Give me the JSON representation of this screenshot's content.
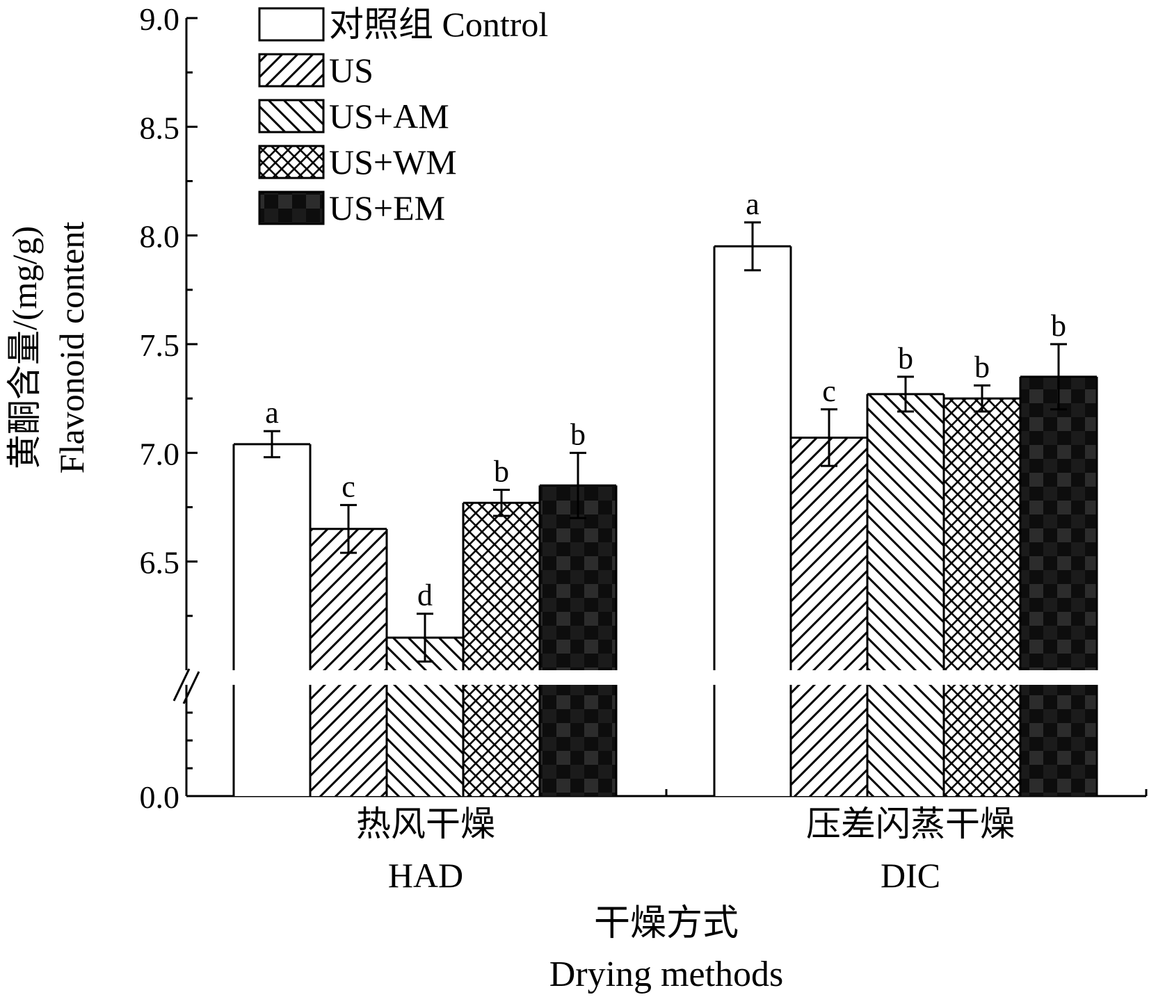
{
  "chart_data": {
    "type": "bar",
    "title": "",
    "xlabel": [
      "干燥方式",
      "Drying methods"
    ],
    "ylabel": [
      "黄酮含量/(mg/g)",
      "Flavonoid content"
    ],
    "axis_break": true,
    "ylim_lower_segment": [
      0,
      6.0
    ],
    "ylim_upper_segment": [
      6.0,
      9.0
    ],
    "yticks": [
      {
        "value": 0.0,
        "label": "0.0"
      },
      {
        "value": 6.5,
        "label": "6.5"
      },
      {
        "value": 7.0,
        "label": "7.0"
      },
      {
        "value": 7.5,
        "label": "7.5"
      },
      {
        "value": 8.0,
        "label": "8.0"
      },
      {
        "value": 8.5,
        "label": "8.5"
      },
      {
        "value": 9.0,
        "label": "9.0"
      }
    ],
    "categories": [
      {
        "zh": "热风干燥",
        "en": "HAD"
      },
      {
        "zh": "压差闪蒸干燥",
        "en": "DIC"
      }
    ],
    "legend_position": "top-left",
    "grid": false,
    "series": [
      {
        "name": "对照组 Control",
        "pattern": "none",
        "values": [
          7.04,
          7.95
        ],
        "errors": [
          0.06,
          0.11
        ],
        "letters": [
          "a",
          "a"
        ]
      },
      {
        "name": "US",
        "pattern": "forward-diagonal",
        "values": [
          6.65,
          7.07
        ],
        "errors": [
          0.11,
          0.13
        ],
        "letters": [
          "c",
          "c"
        ]
      },
      {
        "name": "US+AM",
        "pattern": "back-diagonal",
        "values": [
          6.15,
          7.27
        ],
        "errors": [
          0.11,
          0.08
        ],
        "letters": [
          "d",
          "b"
        ]
      },
      {
        "name": "US+WM",
        "pattern": "crosshatch",
        "values": [
          6.77,
          7.25
        ],
        "errors": [
          0.06,
          0.06
        ],
        "letters": [
          "b",
          "b"
        ]
      },
      {
        "name": "US+EM",
        "pattern": "dense",
        "values": [
          6.85,
          7.35
        ],
        "errors": [
          0.15,
          0.15
        ],
        "letters": [
          "b",
          "b"
        ]
      }
    ]
  }
}
